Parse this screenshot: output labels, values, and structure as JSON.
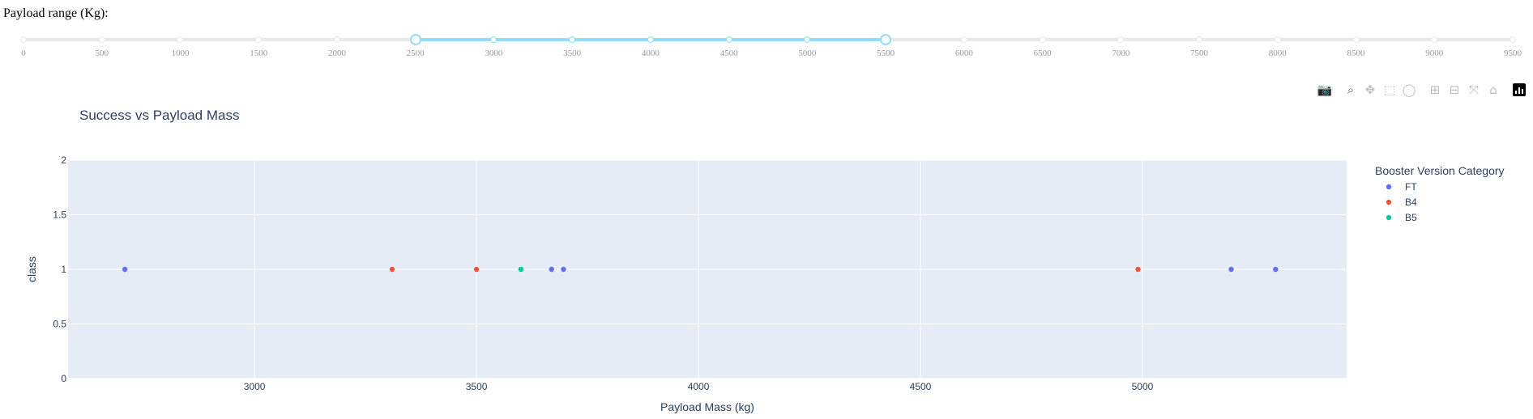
{
  "slider": {
    "label": "Payload range (Kg):",
    "min": 0,
    "max": 9500,
    "step": 500,
    "range": [
      2500,
      5500
    ],
    "marks": [
      "0",
      "500",
      "1000",
      "1500",
      "2000",
      "2500",
      "3000",
      "3500",
      "4000",
      "4500",
      "5000",
      "5500",
      "6000",
      "6500",
      "7000",
      "7500",
      "8000",
      "8500",
      "9000",
      "9500"
    ]
  },
  "modebar": {
    "icons": [
      "camera-icon",
      "zoom-icon",
      "pan-icon",
      "box-select-icon",
      "lasso-icon",
      "zoom-in-icon",
      "zoom-out-icon",
      "autoscale-icon",
      "reset-axes-icon",
      "plotly-logo-icon"
    ],
    "active": "zoom-icon"
  },
  "colors": {
    "FT": "#636efa",
    "B4": "#EF553B",
    "B5": "#00cc96",
    "plot_bg": "#E5ECF6",
    "grid": "#ffffff",
    "text": "#2a3f5f",
    "slider_rail": "#e9e9e9",
    "slider_track": "#96dbfa"
  },
  "chart_data": {
    "type": "scatter",
    "title": "Success vs Payload Mass",
    "xlabel": "Payload Mass (kg)",
    "ylabel": "class",
    "xlim": [
      2580,
      5460
    ],
    "ylim": [
      0,
      2
    ],
    "x_ticks": [
      3000,
      3500,
      4000,
      4500,
      5000
    ],
    "x_tick_labels": [
      "3000",
      "3500",
      "4000",
      "4500",
      "5000"
    ],
    "y_ticks": [
      0,
      0.5,
      1,
      1.5,
      2
    ],
    "y_tick_labels": [
      "0",
      "0.5",
      "1",
      "1.5",
      "2"
    ],
    "grid": true,
    "legend": {
      "title": "Booster Version Category",
      "placement": "right"
    },
    "series": [
      {
        "name": "FT",
        "x": [
          2708,
          3669,
          3696,
          5200,
          5300
        ],
        "y": [
          1,
          1,
          1,
          1,
          1
        ]
      },
      {
        "name": "B4",
        "x": [
          3310,
          3500,
          4990
        ],
        "y": [
          1,
          1,
          1
        ]
      },
      {
        "name": "B5",
        "x": [
          3600
        ],
        "y": [
          1
        ]
      }
    ]
  }
}
